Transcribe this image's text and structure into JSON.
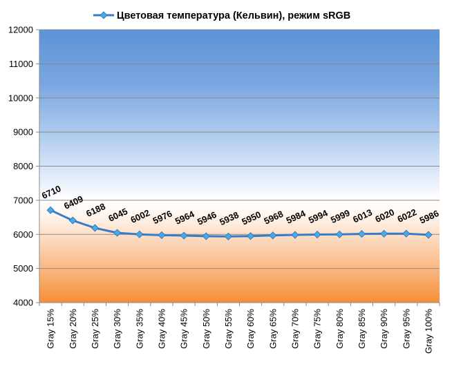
{
  "chart_data": {
    "type": "line",
    "categories": [
      "Gray 15%",
      "Gray 20%",
      "Gray 25%",
      "Gray 30%",
      "Gray 35%",
      "Gray 40%",
      "Gray 45%",
      "Gray 50%",
      "Gray 55%",
      "Gray 60%",
      "Gray 65%",
      "Gray 70%",
      "Gray 75%",
      "Gray 80%",
      "Gray 85%",
      "Gray 90%",
      "Gray 95%",
      "Gray 100%"
    ],
    "series": [
      {
        "name": "Цветовая температура (Кельвин), режим sRGB",
        "values": [
          6710,
          6409,
          6188,
          6045,
          6002,
          5976,
          5964,
          5946,
          5938,
          5950,
          5968,
          5984,
          5994,
          5999,
          6013,
          6020,
          6022,
          5986
        ],
        "color": "#3a7bc8",
        "marker": "diamond",
        "marker_color": "#47a9e6"
      }
    ],
    "ylim": [
      4000,
      12000
    ],
    "yticks": [
      4000,
      5000,
      6000,
      7000,
      8000,
      9000,
      10000,
      11000,
      12000
    ],
    "grid": true,
    "legend": "top",
    "data_labels": true,
    "background_colors": {
      "top": "#5b93d8",
      "middle": "#ffffff",
      "bottom": "#f68e36"
    }
  }
}
